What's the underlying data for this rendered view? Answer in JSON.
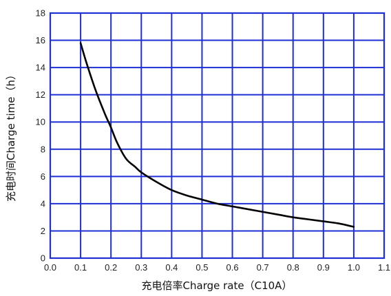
{
  "chart_data": {
    "type": "line",
    "title": "",
    "xlabel": "充电倍率Charge rate（C10A）",
    "ylabel": "充电时间Charge time（h）",
    "xlim": [
      0.0,
      1.1
    ],
    "ylim": [
      0,
      18
    ],
    "xticks": [
      "0.0",
      "0.1",
      "0.2",
      "0.3",
      "0.4",
      "0.5",
      "0.6",
      "0.7",
      "0.8",
      "0.9",
      "1.0",
      "1.1"
    ],
    "yticks": [
      "0",
      "2",
      "4",
      "6",
      "8",
      "10",
      "12",
      "14",
      "16",
      "18"
    ],
    "grid": true,
    "grid_color": "#1f2fd6",
    "line_color": "#000000",
    "series": [
      {
        "x": [
          0.1,
          0.12,
          0.15,
          0.18,
          0.2,
          0.22,
          0.25,
          0.28,
          0.3,
          0.35,
          0.4,
          0.45,
          0.5,
          0.55,
          0.6,
          0.65,
          0.7,
          0.75,
          0.8,
          0.85,
          0.9,
          0.95,
          1.0
        ],
        "y": [
          15.8,
          14.3,
          12.3,
          10.6,
          9.6,
          8.5,
          7.3,
          6.7,
          6.3,
          5.6,
          5.0,
          4.6,
          4.3,
          4.0,
          3.8,
          3.6,
          3.4,
          3.2,
          3.0,
          2.85,
          2.7,
          2.55,
          2.3
        ]
      }
    ]
  }
}
